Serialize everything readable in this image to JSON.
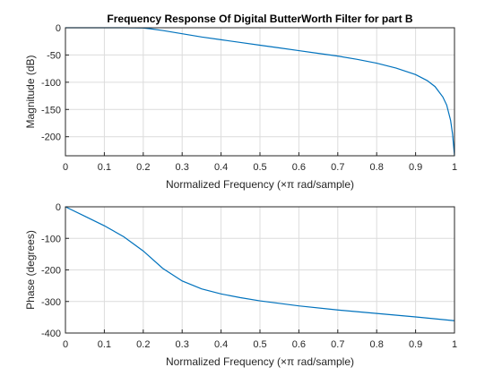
{
  "chart_data": [
    {
      "type": "line",
      "title": "Frequency Response Of Digital ButterWorth Filter for part B",
      "xlabel": "Normalized Frequency  (×π rad/sample)",
      "ylabel": "Magnitude (dB)",
      "xlim": [
        0,
        1
      ],
      "ylim": [
        -235,
        0
      ],
      "grid": true,
      "xticks": [
        "0",
        "0.1",
        "0.2",
        "0.3",
        "0.4",
        "0.5",
        "0.6",
        "0.7",
        "0.8",
        "0.9",
        "1"
      ],
      "yticks": [
        "0",
        "-50",
        "-100",
        "-150",
        "-200"
      ],
      "series": [
        {
          "color": "#0072bd",
          "x": [
            0,
            0.05,
            0.1,
            0.15,
            0.2,
            0.22,
            0.25,
            0.3,
            0.35,
            0.4,
            0.45,
            0.5,
            0.55,
            0.6,
            0.65,
            0.7,
            0.75,
            0.8,
            0.85,
            0.9,
            0.93,
            0.95,
            0.97,
            0.98,
            0.99,
            0.995,
            1
          ],
          "y": [
            0,
            0,
            0,
            0,
            -0.5,
            -2,
            -5,
            -11,
            -17,
            -22,
            -27,
            -32,
            -37,
            -42,
            -47,
            -52,
            -58,
            -65,
            -74,
            -86,
            -97,
            -108,
            -127,
            -142,
            -170,
            -195,
            -235
          ]
        }
      ]
    },
    {
      "type": "line",
      "title": "",
      "xlabel": "Normalized Frequency  (×π rad/sample)",
      "ylabel": "Phase (degrees)",
      "xlim": [
        0,
        1
      ],
      "ylim": [
        -400,
        0
      ],
      "grid": true,
      "xticks": [
        "0",
        "0.1",
        "0.2",
        "0.3",
        "0.4",
        "0.5",
        "0.6",
        "0.7",
        "0.8",
        "0.9",
        "1"
      ],
      "yticks": [
        "0",
        "-100",
        "-200",
        "-300",
        "-400"
      ],
      "series": [
        {
          "color": "#0072bd",
          "x": [
            0,
            0.05,
            0.1,
            0.15,
            0.2,
            0.25,
            0.3,
            0.35,
            0.4,
            0.45,
            0.5,
            0.6,
            0.7,
            0.8,
            0.9,
            1
          ],
          "y": [
            0,
            -30,
            -60,
            -95,
            -140,
            -195,
            -235,
            -260,
            -276,
            -288,
            -298,
            -314,
            -327,
            -338,
            -349,
            -361
          ]
        }
      ]
    }
  ]
}
